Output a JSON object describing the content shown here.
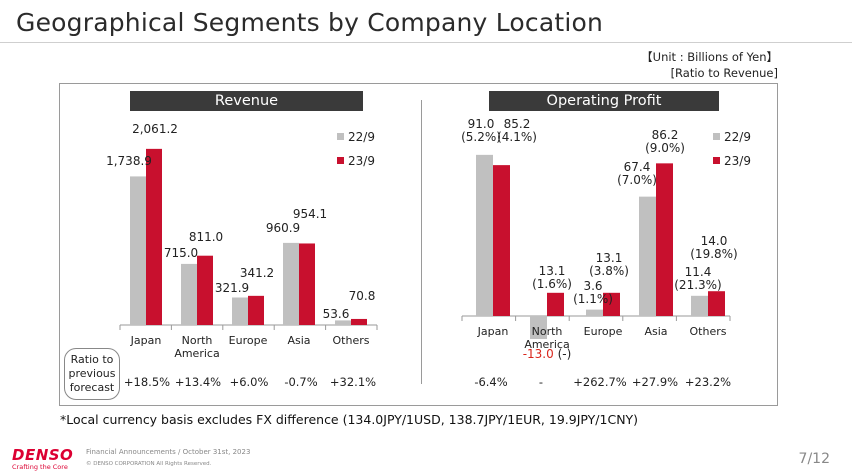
{
  "page_title": "Geographical Segments by Company Location",
  "unit_line1": "【Unit : Billions of Yen】",
  "unit_line2": "[Ratio to Revenue]",
  "ratio_box_label": [
    "Ratio to",
    "previous",
    "forecast"
  ],
  "footnote": "*Local currency basis excludes FX difference (134.0JPY/1USD, 138.7JPY/1EUR, 19.9JPY/1CNY)",
  "footer": {
    "logo": "DENSO",
    "tagline": "Crafting the Core",
    "announcement": "Financial Announcements / October 31st, 2023",
    "copyright": "© DENSO CORPORATION All Rights Reserved.",
    "page": "7/12"
  },
  "colors": {
    "series_prev": "#c0c0c0",
    "series_curr": "#c8102e",
    "header": "#3a3a3a",
    "negative": "#d9261c"
  },
  "chart_data": [
    {
      "type": "bar",
      "title": "Revenue",
      "categories": [
        "Japan",
        "North\nAmerica",
        "Europe",
        "Asia",
        "Others"
      ],
      "series": [
        {
          "name": "22/9",
          "values": [
            1738.9,
            715.0,
            321.9,
            960.9,
            53.6
          ]
        },
        {
          "name": "23/9",
          "values": [
            2061.2,
            811.0,
            341.2,
            954.1,
            70.8
          ]
        }
      ],
      "labels_prev": [
        "1,738.9",
        "715.0",
        "321.9",
        "960.9",
        "53.6"
      ],
      "labels_curr": [
        "2,061.2",
        "811.0",
        "341.2",
        "954.1",
        "70.8"
      ],
      "ratio_to_previous_forecast": [
        "+18.5%",
        "+13.4%",
        "+6.0%",
        "-0.7%",
        "+32.1%"
      ],
      "legend": [
        "22/9",
        "23/9"
      ],
      "ylim": [
        0,
        2200
      ]
    },
    {
      "type": "bar",
      "title": "Operating Profit",
      "categories": [
        "Japan",
        "North\nAmerica",
        "Europe",
        "Asia",
        "Others"
      ],
      "series": [
        {
          "name": "22/9",
          "values": [
            91.0,
            -13.0,
            3.6,
            67.4,
            11.4
          ]
        },
        {
          "name": "23/9",
          "values": [
            85.2,
            13.1,
            13.1,
            86.2,
            14.0
          ]
        }
      ],
      "labels_prev": [
        "91.0\n(5.2%)",
        "-13.0\n(-)",
        "3.6\n(1.1%)",
        "67.4\n(7.0%)",
        "11.4\n(21.3%)"
      ],
      "labels_curr": [
        "85.2\n(4.1%)",
        "13.1\n(1.6%)",
        "13.1\n(3.8%)",
        "86.2\n(9.0%)",
        "14.0\n(19.8%)"
      ],
      "ratio_to_previous_forecast": [
        "-6.4%",
        "-",
        "+262.7%",
        "+27.9%",
        "+23.2%"
      ],
      "legend": [
        "22/9",
        "23/9"
      ],
      "ylim": [
        -16,
        96
      ]
    }
  ]
}
